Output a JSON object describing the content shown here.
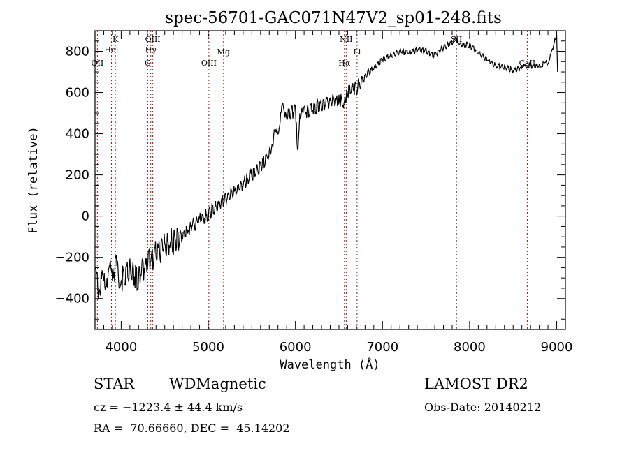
{
  "chart_data": {
    "type": "line",
    "title": "spec-56701-GAC071N47V2_sp01-248.fits",
    "xlabel": "Wavelength (Å)",
    "ylabel": "Flux (relative)",
    "xlim": [
      3700,
      9100
    ],
    "ylim": [
      -550,
      900
    ],
    "xticks": [
      4000,
      5000,
      6000,
      7000,
      8000,
      9000
    ],
    "xtick_labels": [
      "4000",
      "5000",
      "6000",
      "7000",
      "8000",
      "9000"
    ],
    "yticks": [
      -400,
      -200,
      0,
      200,
      400,
      600,
      800
    ],
    "ytick_labels": [
      "−400",
      "−200",
      "0",
      "200",
      "400",
      "600",
      "800"
    ],
    "grid": false,
    "series": [
      {
        "name": "flux",
        "color": "#000000",
        "x": [
          3700,
          3750,
          3800,
          3850,
          3900,
          3950,
          4000,
          4100,
          4200,
          4300,
          4400,
          4500,
          4600,
          4700,
          4800,
          4900,
          5000,
          5100,
          5200,
          5300,
          5400,
          5500,
          5600,
          5700,
          5750,
          5800,
          5850,
          5900,
          6000,
          6030,
          6050,
          6100,
          6200,
          6300,
          6400,
          6500,
          6563,
          6600,
          6700,
          6800,
          6900,
          7000,
          7100,
          7200,
          7300,
          7400,
          7500,
          7600,
          7700,
          7800,
          7850,
          7900,
          8000,
          8100,
          8200,
          8300,
          8400,
          8500,
          8600,
          8650,
          8700,
          8800,
          8850,
          8900,
          8950,
          8980,
          9000,
          9010
        ],
        "y": [
          -300,
          -350,
          -320,
          -280,
          -250,
          -260,
          -300,
          -260,
          -300,
          -220,
          -180,
          -150,
          -120,
          -90,
          -50,
          -20,
          10,
          50,
          90,
          120,
          160,
          200,
          240,
          300,
          380,
          420,
          520,
          500,
          510,
          300,
          500,
          500,
          520,
          540,
          560,
          570,
          540,
          600,
          620,
          680,
          720,
          760,
          780,
          800,
          790,
          810,
          800,
          780,
          820,
          840,
          860,
          830,
          830,
          790,
          760,
          730,
          720,
          710,
          720,
          730,
          730,
          730,
          740,
          750,
          800,
          860,
          880,
          700
        ]
      }
    ],
    "emission_lines": [
      {
        "label": "OII",
        "wavelength": 3727
      },
      {
        "label": "K",
        "wavelength": 3934
      },
      {
        "label": "HeI",
        "wavelength": 3889
      },
      {
        "label": "G",
        "wavelength": 4305
      },
      {
        "label": "Hγ",
        "wavelength": 4340
      },
      {
        "label": "OIII",
        "wavelength": 4363
      },
      {
        "label": "OIII",
        "wavelength": 5007
      },
      {
        "label": "Mg",
        "wavelength": 5175
      },
      {
        "label": "Hα",
        "wavelength": 6563
      },
      {
        "label": "NII",
        "wavelength": 6583
      },
      {
        "label": "Li",
        "wavelength": 6708
      },
      {
        "label": "SII",
        "wavelength": 7850
      },
      {
        "label": "CaII",
        "wavelength": 8662
      }
    ],
    "line_color": "#8b1a1a"
  },
  "info": {
    "object_class": "STAR",
    "subclass": "WDMagnetic",
    "survey": "LAMOST DR2",
    "redshift": "cz = −1223.4 ± 44.4 km/s",
    "obs_date": "Obs-Date: 20140212",
    "coords": "RA =  70.66660, DEC =  45.14202"
  }
}
